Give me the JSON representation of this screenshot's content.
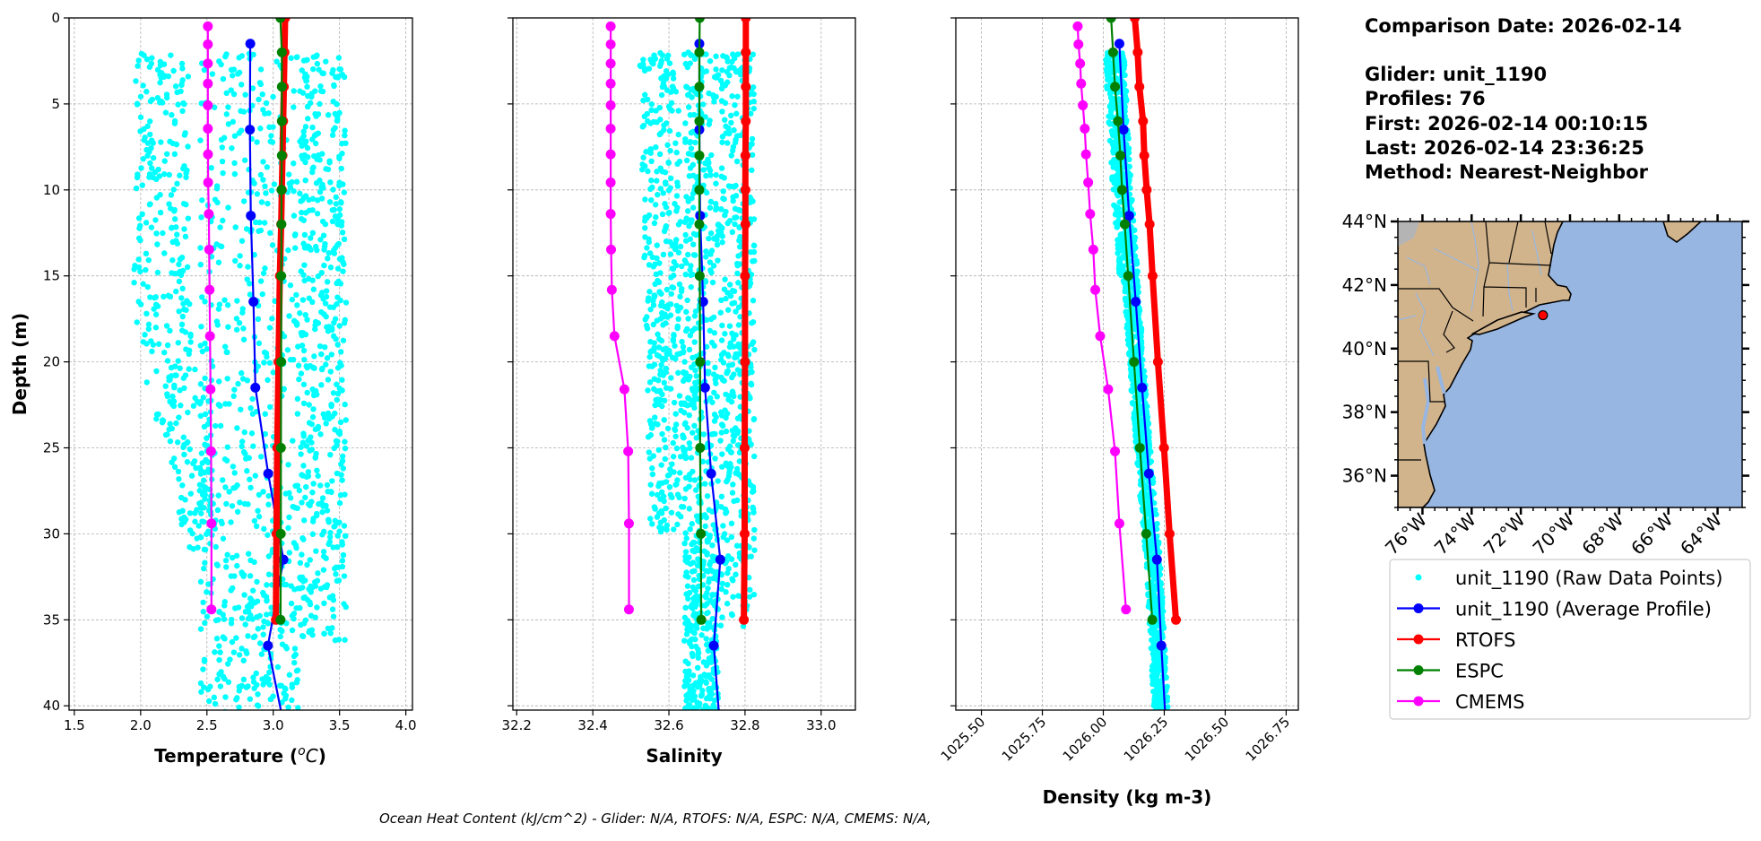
{
  "info": {
    "comparison_date": "Comparison Date: 2026-02-14",
    "glider": "Glider: unit_1190",
    "profiles": "Profiles: 76",
    "first": "First: 2026-02-14 00:10:15",
    "last": "Last: 2026-02-14 23:36:25",
    "method": "Method: Nearest-Neighbor"
  },
  "footer": "Ocean Heat Content (kJ/cm^2) - Glider: N/A,  RTOFS: N/A,  ESPC: N/A,  CMEMS: N/A,",
  "legend": [
    {
      "label": "unit_1190 (Raw Data Points)",
      "color": "#00ffff",
      "style": "point"
    },
    {
      "label": "unit_1190 (Average Profile)",
      "color": "#0000ff",
      "style": "line-marker"
    },
    {
      "label": "RTOFS",
      "color": "#ff0000",
      "style": "line-marker"
    },
    {
      "label": "ESPC",
      "color": "#008000",
      "style": "line-marker"
    },
    {
      "label": "CMEMS",
      "color": "#ff00ff",
      "style": "line-marker"
    }
  ],
  "map": {
    "lon_range": [
      -77,
      -63
    ],
    "lat_range": [
      35,
      44
    ],
    "lat_ticks": [
      {
        "v": 44,
        "label": "44°N"
      },
      {
        "v": 42,
        "label": "42°N"
      },
      {
        "v": 40,
        "label": "40°N"
      },
      {
        "v": 38,
        "label": "38°N"
      },
      {
        "v": 36,
        "label": "36°N"
      }
    ],
    "lon_ticks": [
      {
        "v": -76,
        "label": "76°W"
      },
      {
        "v": -74,
        "label": "74°W"
      },
      {
        "v": -72,
        "label": "72°W"
      },
      {
        "v": -70,
        "label": "70°W"
      },
      {
        "v": -68,
        "label": "68°W"
      },
      {
        "v": -66,
        "label": "66°W"
      },
      {
        "v": -64,
        "label": "64°W"
      }
    ],
    "glider_position": {
      "lon": -71.1,
      "lat": 41.05
    },
    "land_color": "#d2b48c",
    "ocean_color": "#97b6e1",
    "marker_color": "#ff0000"
  },
  "chart_data": [
    {
      "type": "line",
      "xlabel_parts": [
        "Temperature (",
        "o",
        "C",
        ")"
      ],
      "ylabel": "Depth (m)",
      "xlim": [
        1.46,
        4.05
      ],
      "ylim": [
        40.25,
        0
      ],
      "grid": true,
      "xticks": [
        "1.5",
        "2.0",
        "2.5",
        "3.0",
        "3.5",
        "4.0"
      ],
      "yticks": [
        "0",
        "5",
        "10",
        "15",
        "20",
        "25",
        "30",
        "35",
        "40"
      ],
      "series": [
        {
          "name": "unit_1190 (Average Profile)",
          "color": "#0000ff",
          "depth": [
            1.5,
            6.5,
            11.5,
            16.5,
            21.5,
            26.5,
            31.5,
            36.5,
            41.5
          ],
          "values": [
            2.827,
            2.824,
            2.831,
            2.851,
            2.865,
            2.962,
            3.077,
            2.96,
            3.09
          ]
        },
        {
          "name": "RTOFS",
          "color": "#ff0000",
          "depth": [
            0,
            2,
            4,
            6,
            8,
            10,
            12,
            15,
            20,
            25,
            30,
            35
          ],
          "values": [
            3.09,
            3.085,
            3.08,
            3.075,
            3.07,
            3.065,
            3.06,
            3.05,
            3.04,
            3.03,
            3.025,
            3.02
          ]
        },
        {
          "name": "ESPC",
          "color": "#008000",
          "depth": [
            0,
            2,
            4,
            6,
            8,
            10,
            12,
            15,
            20,
            25,
            30,
            35
          ],
          "values": [
            3.054,
            3.065,
            3.065,
            3.065,
            3.065,
            3.062,
            3.062,
            3.06,
            3.06,
            3.058,
            3.057,
            3.055
          ]
        },
        {
          "name": "CMEMS",
          "color": "#ff00ff",
          "depth": [
            0.49,
            1.54,
            2.65,
            3.82,
            5.08,
            6.44,
            7.93,
            9.57,
            11.4,
            13.47,
            15.81,
            18.5,
            21.6,
            25.2,
            29.4,
            34.4
          ],
          "values": [
            2.507,
            2.507,
            2.507,
            2.507,
            2.507,
            2.507,
            2.508,
            2.509,
            2.514,
            2.517,
            2.52,
            2.523,
            2.527,
            2.531,
            2.534,
            2.534
          ]
        }
      ]
    },
    {
      "type": "line",
      "xlabel_parts": [
        "Salinity"
      ],
      "ylabel": "",
      "xlim": [
        32.19,
        33.09
      ],
      "ylim": [
        40.25,
        0
      ],
      "grid": true,
      "xticks": [
        "32.2",
        "32.4",
        "32.6",
        "32.8",
        "33.0"
      ],
      "yticks": [
        "0",
        "5",
        "10",
        "15",
        "20",
        "25",
        "30",
        "35",
        "40"
      ],
      "series": [
        {
          "name": "unit_1190 (Average Profile)",
          "color": "#0000ff",
          "depth": [
            1.5,
            6.5,
            11.5,
            16.5,
            21.5,
            26.5,
            31.5,
            36.5,
            41.5
          ],
          "values": [
            32.68,
            32.68,
            32.682,
            32.69,
            32.695,
            32.711,
            32.735,
            32.718,
            32.735
          ]
        },
        {
          "name": "RTOFS",
          "color": "#ff0000",
          "depth": [
            0,
            2,
            4,
            6,
            8,
            10,
            12,
            15,
            20,
            25,
            30,
            35
          ],
          "values": [
            32.802,
            32.802,
            32.802,
            32.802,
            32.801,
            32.801,
            32.801,
            32.8,
            32.8,
            32.799,
            32.799,
            32.797
          ]
        },
        {
          "name": "ESPC",
          "color": "#008000",
          "depth": [
            0,
            2,
            4,
            6,
            8,
            10,
            12,
            15,
            20,
            25,
            30,
            35
          ],
          "values": [
            32.681,
            32.68,
            32.68,
            32.68,
            32.68,
            32.68,
            32.68,
            32.681,
            32.682,
            32.682,
            32.684,
            32.685
          ]
        },
        {
          "name": "CMEMS",
          "color": "#ff00ff",
          "depth": [
            0.49,
            1.54,
            2.65,
            3.82,
            5.08,
            6.44,
            7.93,
            9.57,
            11.4,
            13.47,
            15.81,
            18.5,
            21.6,
            25.2,
            29.4,
            34.4
          ],
          "values": [
            32.447,
            32.447,
            32.447,
            32.447,
            32.447,
            32.447,
            32.447,
            32.447,
            32.447,
            32.448,
            32.45,
            32.457,
            32.483,
            32.493,
            32.495,
            32.495
          ]
        }
      ]
    },
    {
      "type": "line",
      "xlabel_parts": [
        "Density (kg m-3)"
      ],
      "ylabel": "",
      "xlim": [
        1025.395,
        1026.8
      ],
      "ylim": [
        40.25,
        0
      ],
      "grid": true,
      "xticks": [
        "1025.50",
        "1025.75",
        "1026.00",
        "1026.25",
        "1026.50",
        "1026.75"
      ],
      "yticks": [
        "0",
        "5",
        "10",
        "15",
        "20",
        "25",
        "30",
        "35",
        "40"
      ],
      "series": [
        {
          "name": "unit_1190 (Average Profile)",
          "color": "#0000ff",
          "depth": [
            1.5,
            6.5,
            11.5,
            16.5,
            21.5,
            26.5,
            31.5,
            36.5,
            41.5
          ],
          "values": [
            1026.066,
            1026.083,
            1026.106,
            1026.133,
            1026.159,
            1026.187,
            1026.22,
            1026.238,
            1026.258
          ]
        },
        {
          "name": "RTOFS",
          "color": "#ff0000",
          "depth": [
            0,
            2,
            4,
            6,
            8,
            10,
            12,
            15,
            20,
            25,
            30,
            35
          ],
          "values": [
            1026.129,
            1026.141,
            1026.148,
            1026.163,
            1026.168,
            1026.178,
            1026.19,
            1026.202,
            1026.224,
            1026.249,
            1026.272,
            1026.298
          ]
        },
        {
          "name": "ESPC",
          "color": "#008000",
          "depth": [
            0,
            2,
            4,
            6,
            8,
            10,
            12,
            15,
            20,
            25,
            30,
            35
          ],
          "values": [
            1026.032,
            1026.04,
            1026.048,
            1026.06,
            1026.07,
            1026.077,
            1026.088,
            1026.102,
            1026.126,
            1026.15,
            1026.176,
            1026.201
          ]
        },
        {
          "name": "CMEMS",
          "color": "#ff00ff",
          "depth": [
            0.49,
            1.54,
            2.65,
            3.82,
            5.08,
            6.44,
            7.93,
            9.57,
            11.4,
            13.47,
            15.81,
            18.5,
            21.6,
            25.2,
            29.4,
            34.4
          ],
          "values": [
            1025.895,
            1025.898,
            1025.905,
            1025.909,
            1025.916,
            1025.924,
            1025.929,
            1025.938,
            1025.946,
            1025.959,
            1025.967,
            1025.987,
            1026.02,
            1026.048,
            1026.066,
            1026.093
          ]
        }
      ]
    }
  ]
}
